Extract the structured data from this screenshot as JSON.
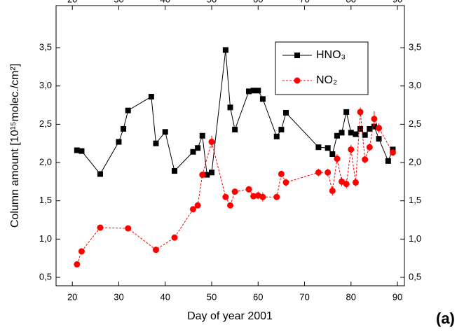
{
  "chart_data": {
    "type": "line",
    "x_label": "Day of year 2001",
    "y_label": "Column amount [10¹⁵molec./cm²]",
    "annotation": "(a)",
    "xlim": [
      16.5,
      91.5
    ],
    "xticks": [
      20,
      30,
      40,
      50,
      60,
      70,
      80,
      90
    ],
    "ylim": [
      0.39,
      4.05
    ],
    "yticks": [
      {
        "value": 0.5,
        "label": "0,5"
      },
      {
        "value": 1.0,
        "label": "1,0"
      },
      {
        "value": 1.5,
        "label": "1,5"
      },
      {
        "value": 2.0,
        "label": "2,0"
      },
      {
        "value": 2.5,
        "label": "2,5"
      },
      {
        "value": 3.0,
        "label": "3,0"
      },
      {
        "value": 3.5,
        "label": "3,5"
      }
    ],
    "series": [
      {
        "name": "HNO₃",
        "color": "#000000",
        "marker": "square",
        "dashed": false,
        "x": [
          21,
          22,
          26,
          30,
          31,
          32,
          37,
          38,
          40,
          42,
          46,
          47,
          48,
          49,
          50,
          53,
          54,
          55,
          58,
          59,
          60,
          61,
          64,
          65,
          66,
          73,
          75,
          76,
          77,
          78,
          79,
          80,
          81,
          82,
          83,
          84,
          85,
          86,
          88,
          89
        ],
        "values": [
          2.16,
          2.15,
          1.85,
          2.27,
          2.44,
          2.68,
          2.86,
          2.25,
          2.4,
          1.89,
          2.14,
          2.19,
          2.35,
          1.84,
          1.87,
          3.47,
          2.72,
          2.43,
          2.93,
          2.94,
          2.94,
          2.83,
          2.34,
          2.43,
          2.65,
          2.2,
          2.19,
          2.11,
          2.35,
          2.39,
          2.66,
          2.39,
          2.37,
          2.44,
          2.36,
          2.44,
          2.47,
          2.31,
          2.02,
          2.17
        ]
      },
      {
        "name": "NO₂",
        "color": "#ff0000",
        "marker": "circle",
        "dashed": true,
        "x": [
          21,
          22,
          26,
          32,
          38,
          42,
          46,
          47,
          48,
          50,
          53,
          54,
          55,
          58,
          59,
          60,
          61,
          64,
          65,
          66,
          73,
          75,
          76,
          77,
          78,
          79,
          80,
          81,
          82,
          83,
          84,
          85,
          86,
          89
        ],
        "values": [
          0.67,
          0.84,
          1.15,
          1.14,
          0.86,
          1.02,
          1.39,
          1.44,
          1.84,
          2.27,
          1.55,
          1.44,
          1.62,
          1.65,
          1.56,
          1.57,
          1.55,
          1.55,
          1.85,
          1.74,
          1.87,
          1.87,
          1.63,
          2.05,
          1.75,
          1.72,
          2.17,
          1.74,
          2.66,
          2.04,
          2.2,
          2.57,
          2.45,
          2.13
        ],
        "errors": [
          0.02,
          0.02,
          0.02,
          0.02,
          0.02,
          0.02,
          0.03,
          0.03,
          0.03,
          0.08,
          0.03,
          0.03,
          0.03,
          0.04,
          0.04,
          0.05,
          0.06,
          0.04,
          0.03,
          0.05,
          0.05,
          0.05,
          0.06,
          0.06,
          0.06,
          0.06,
          0.06,
          0.05,
          0.06,
          0.05,
          0.05,
          0.1,
          0.06,
          0.04
        ]
      }
    ],
    "legend": "top-right"
  }
}
